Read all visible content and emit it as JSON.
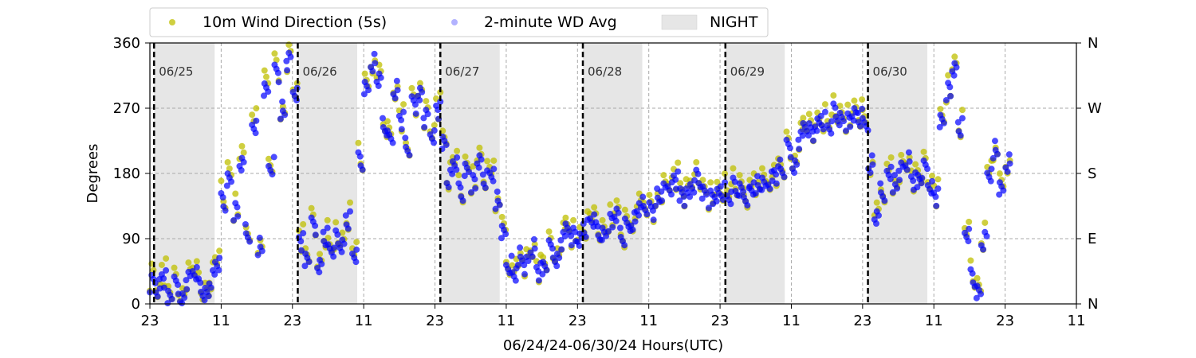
{
  "chart_data": {
    "type": "scatter",
    "xlabel": "06/24/24-06/30/24  Hours(UTC)",
    "ylabel": "Degrees",
    "x_tick_labels": [
      "23",
      "11",
      "23",
      "11",
      "23",
      "11",
      "23",
      "11",
      "23",
      "11",
      "23",
      "11",
      "23",
      "11"
    ],
    "y_ticks": [
      0,
      90,
      180,
      270,
      360
    ],
    "y_tick_labels": [
      "0",
      "90",
      "180",
      "270",
      "360"
    ],
    "y2_tick_labels": [
      "N",
      "E",
      "S",
      "W",
      "N"
    ],
    "ylim": [
      0,
      360
    ],
    "grid": "horizontal at 90, 180, 270; vertical dashed at 11 and 23 hours",
    "legend_position": "top, above plot",
    "day_labels": [
      "06/25",
      "06/26",
      "06/27",
      "06/28",
      "06/29",
      "06/30"
    ],
    "legend": {
      "series1": "10m Wind Direction (5s)",
      "series2": "2-minute WD Avg",
      "night": "NIGHT"
    },
    "colors": {
      "series1": "#bfbf00",
      "series2": "#0000ff",
      "night": "#e6e6e6"
    },
    "series": [
      {
        "name": "10m Wind Direction (5s)",
        "color": "#bfbf00",
        "points": [
          [
            0,
            40
          ],
          [
            1,
            25
          ],
          [
            2,
            45
          ],
          [
            3,
            20
          ],
          [
            4,
            30
          ],
          [
            5,
            15
          ],
          [
            6,
            35
          ],
          [
            7,
            50
          ],
          [
            8,
            28
          ],
          [
            9,
            18
          ],
          [
            10,
            40
          ],
          [
            11,
            60
          ],
          [
            12,
            150
          ],
          [
            13,
            180
          ],
          [
            14,
            130
          ],
          [
            15,
            200
          ],
          [
            16,
            110
          ],
          [
            17,
            250
          ],
          [
            18,
            90
          ],
          [
            19,
            300
          ],
          [
            20,
            200
          ],
          [
            21,
            330
          ],
          [
            22,
            270
          ],
          [
            23,
            340
          ],
          [
            24,
            300
          ],
          [
            25,
            90
          ],
          [
            26,
            70
          ],
          [
            27,
            110
          ],
          [
            28,
            60
          ],
          [
            29,
            100
          ],
          [
            30,
            80
          ],
          [
            31,
            95
          ],
          [
            32,
            85
          ],
          [
            33,
            120
          ],
          [
            34,
            70
          ],
          [
            35,
            200
          ],
          [
            36,
            300
          ],
          [
            37,
            340
          ],
          [
            38,
            310
          ],
          [
            39,
            250
          ],
          [
            40,
            230
          ],
          [
            41,
            300
          ],
          [
            42,
            260
          ],
          [
            43,
            220
          ],
          [
            44,
            280
          ],
          [
            45,
            300
          ],
          [
            46,
            260
          ],
          [
            47,
            240
          ],
          [
            48,
            270
          ],
          [
            49,
            230
          ],
          [
            50,
            180
          ],
          [
            51,
            200
          ],
          [
            52,
            160
          ],
          [
            53,
            190
          ],
          [
            54,
            170
          ],
          [
            55,
            200
          ],
          [
            56,
            175
          ],
          [
            57,
            180
          ],
          [
            58,
            150
          ],
          [
            59,
            100
          ],
          [
            60,
            60
          ],
          [
            61,
            40
          ],
          [
            62,
            70
          ],
          [
            63,
            60
          ],
          [
            64,
            80
          ],
          [
            65,
            50
          ],
          [
            66,
            60
          ],
          [
            67,
            80
          ],
          [
            68,
            70
          ],
          [
            69,
            90
          ],
          [
            70,
            110
          ],
          [
            71,
            100
          ],
          [
            72,
            95
          ],
          [
            73,
            110
          ],
          [
            74,
            120
          ],
          [
            75,
            105
          ],
          [
            76,
            100
          ],
          [
            77,
            115
          ],
          [
            78,
            125
          ],
          [
            79,
            100
          ],
          [
            80,
            110
          ],
          [
            81,
            120
          ],
          [
            82,
            130
          ],
          [
            83,
            140
          ],
          [
            84,
            135
          ],
          [
            85,
            150
          ],
          [
            86,
            160
          ],
          [
            87,
            170
          ],
          [
            88,
            175
          ],
          [
            89,
            160
          ],
          [
            90,
            150
          ],
          [
            91,
            170
          ],
          [
            92,
            180
          ],
          [
            93,
            160
          ],
          [
            94,
            150
          ],
          [
            95,
            155
          ],
          [
            96,
            160
          ],
          [
            97,
            150
          ],
          [
            98,
            165
          ],
          [
            99,
            160
          ],
          [
            100,
            155
          ],
          [
            101,
            160
          ],
          [
            102,
            170
          ],
          [
            103,
            165
          ],
          [
            104,
            175
          ],
          [
            105,
            185
          ],
          [
            106,
            190
          ],
          [
            107,
            220
          ],
          [
            108,
            200
          ],
          [
            109,
            230
          ],
          [
            110,
            250
          ],
          [
            111,
            240
          ],
          [
            112,
            255
          ],
          [
            113,
            260
          ],
          [
            114,
            250
          ],
          [
            115,
            270
          ],
          [
            116,
            260
          ],
          [
            117,
            255
          ],
          [
            118,
            265
          ],
          [
            119,
            260
          ],
          [
            120,
            250
          ],
          [
            121,
            200
          ],
          [
            122,
            120
          ],
          [
            123,
            160
          ],
          [
            124,
            180
          ],
          [
            125,
            170
          ],
          [
            126,
            190
          ],
          [
            127,
            200
          ],
          [
            128,
            175
          ],
          [
            129,
            180
          ],
          [
            130,
            190
          ],
          [
            131,
            170
          ],
          [
            132,
            150
          ],
          [
            133,
            260
          ],
          [
            134,
            300
          ],
          [
            135,
            330
          ],
          [
            136,
            250
          ],
          [
            137,
            100
          ],
          [
            138,
            40
          ],
          [
            139,
            20
          ],
          [
            140,
            90
          ],
          [
            141,
            180
          ],
          [
            142,
            220
          ],
          [
            143,
            160
          ],
          [
            144,
            200
          ]
        ]
      },
      {
        "name": "2-minute WD Avg",
        "color": "#0000ff",
        "points": [
          [
            0,
            30
          ],
          [
            1,
            20
          ],
          [
            2,
            35
          ],
          [
            3,
            15
          ],
          [
            4,
            25
          ],
          [
            5,
            10
          ],
          [
            6,
            30
          ],
          [
            7,
            45
          ],
          [
            8,
            25
          ],
          [
            9,
            15
          ],
          [
            10,
            35
          ],
          [
            11,
            55
          ],
          [
            12,
            140
          ],
          [
            13,
            170
          ],
          [
            14,
            125
          ],
          [
            15,
            190
          ],
          [
            16,
            100
          ],
          [
            17,
            240
          ],
          [
            18,
            80
          ],
          [
            19,
            290
          ],
          [
            20,
            190
          ],
          [
            21,
            320
          ],
          [
            22,
            265
          ],
          [
            23,
            335
          ],
          [
            24,
            295
          ],
          [
            25,
            85
          ],
          [
            26,
            65
          ],
          [
            27,
            105
          ],
          [
            28,
            55
          ],
          [
            29,
            95
          ],
          [
            30,
            75
          ],
          [
            31,
            90
          ],
          [
            32,
            80
          ],
          [
            33,
            115
          ],
          [
            34,
            65
          ],
          [
            35,
            195
          ],
          [
            36,
            295
          ],
          [
            37,
            335
          ],
          [
            38,
            305
          ],
          [
            39,
            245
          ],
          [
            40,
            225
          ],
          [
            41,
            295
          ],
          [
            42,
            255
          ],
          [
            43,
            215
          ],
          [
            44,
            275
          ],
          [
            45,
            295
          ],
          [
            46,
            255
          ],
          [
            47,
            235
          ],
          [
            48,
            265
          ],
          [
            49,
            225
          ],
          [
            50,
            175
          ],
          [
            51,
            195
          ],
          [
            52,
            155
          ],
          [
            53,
            185
          ],
          [
            54,
            165
          ],
          [
            55,
            195
          ],
          [
            56,
            170
          ],
          [
            57,
            175
          ],
          [
            58,
            145
          ],
          [
            59,
            95
          ],
          [
            60,
            55
          ],
          [
            61,
            35
          ],
          [
            62,
            65
          ],
          [
            63,
            55
          ],
          [
            64,
            75
          ],
          [
            65,
            45
          ],
          [
            66,
            55
          ],
          [
            67,
            75
          ],
          [
            68,
            65
          ],
          [
            69,
            85
          ],
          [
            70,
            105
          ],
          [
            71,
            95
          ],
          [
            72,
            90
          ],
          [
            73,
            105
          ],
          [
            74,
            115
          ],
          [
            75,
            100
          ],
          [
            76,
            95
          ],
          [
            77,
            110
          ],
          [
            78,
            120
          ],
          [
            79,
            95
          ],
          [
            80,
            105
          ],
          [
            81,
            115
          ],
          [
            82,
            125
          ],
          [
            83,
            135
          ],
          [
            84,
            130
          ],
          [
            85,
            145
          ],
          [
            86,
            155
          ],
          [
            87,
            165
          ],
          [
            88,
            170
          ],
          [
            89,
            155
          ],
          [
            90,
            145
          ],
          [
            91,
            165
          ],
          [
            92,
            175
          ],
          [
            93,
            155
          ],
          [
            94,
            145
          ],
          [
            95,
            150
          ],
          [
            96,
            155
          ],
          [
            97,
            145
          ],
          [
            98,
            160
          ],
          [
            99,
            155
          ],
          [
            100,
            150
          ],
          [
            101,
            155
          ],
          [
            102,
            165
          ],
          [
            103,
            160
          ],
          [
            104,
            170
          ],
          [
            105,
            180
          ],
          [
            106,
            185
          ],
          [
            107,
            215
          ],
          [
            108,
            195
          ],
          [
            109,
            225
          ],
          [
            110,
            245
          ],
          [
            111,
            235
          ],
          [
            112,
            250
          ],
          [
            113,
            255
          ],
          [
            114,
            245
          ],
          [
            115,
            265
          ],
          [
            116,
            255
          ],
          [
            117,
            250
          ],
          [
            118,
            260
          ],
          [
            119,
            255
          ],
          [
            120,
            245
          ],
          [
            121,
            195
          ],
          [
            122,
            115
          ],
          [
            123,
            155
          ],
          [
            124,
            175
          ],
          [
            125,
            165
          ],
          [
            126,
            185
          ],
          [
            127,
            195
          ],
          [
            128,
            170
          ],
          [
            129,
            175
          ],
          [
            130,
            185
          ],
          [
            131,
            165
          ],
          [
            132,
            145
          ],
          [
            133,
            255
          ],
          [
            134,
            295
          ],
          [
            135,
            325
          ],
          [
            136,
            245
          ],
          [
            137,
            95
          ],
          [
            138,
            35
          ],
          [
            139,
            15
          ],
          [
            140,
            85
          ],
          [
            141,
            175
          ],
          [
            142,
            215
          ],
          [
            143,
            155
          ],
          [
            144,
            195
          ]
        ]
      }
    ]
  }
}
